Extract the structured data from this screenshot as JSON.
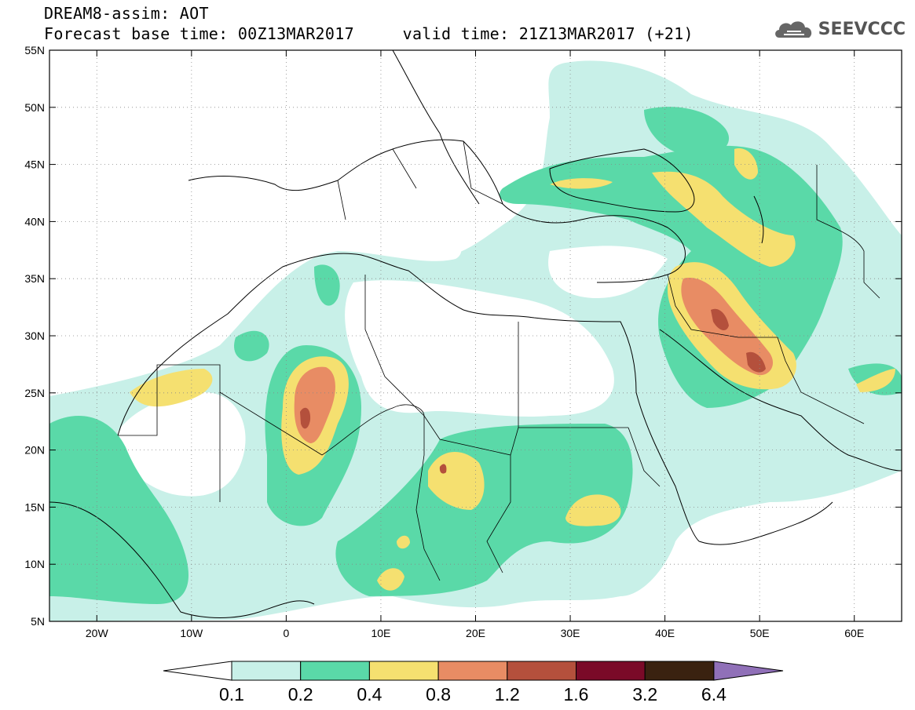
{
  "header": {
    "title_line1": "DREAM8-assim: AOT",
    "title_line2": "Forecast base time: 00Z13MAR2017     valid time: 21Z13MAR2017 (+21)",
    "brand": "SEEVCCC",
    "brand_icon": "cloud-logo-icon"
  },
  "map": {
    "projection": "lat-lon",
    "lon_range": [
      -25,
      65
    ],
    "lat_range": [
      5,
      55
    ],
    "lon_ticks": [
      {
        "value": -20,
        "label": "20W"
      },
      {
        "value": -10,
        "label": "10W"
      },
      {
        "value": 0,
        "label": "0"
      },
      {
        "value": 10,
        "label": "10E"
      },
      {
        "value": 20,
        "label": "20E"
      },
      {
        "value": 30,
        "label": "30E"
      },
      {
        "value": 40,
        "label": "40E"
      },
      {
        "value": 50,
        "label": "50E"
      },
      {
        "value": 60,
        "label": "60E"
      }
    ],
    "lat_ticks": [
      {
        "value": 5,
        "label": "5N"
      },
      {
        "value": 10,
        "label": "10N"
      },
      {
        "value": 15,
        "label": "15N"
      },
      {
        "value": 20,
        "label": "20N"
      },
      {
        "value": 25,
        "label": "25N"
      },
      {
        "value": 30,
        "label": "30N"
      },
      {
        "value": 35,
        "label": "35N"
      },
      {
        "value": 40,
        "label": "40N"
      },
      {
        "value": 45,
        "label": "45N"
      },
      {
        "value": 50,
        "label": "50N"
      },
      {
        "value": 55,
        "label": "55N"
      }
    ],
    "grid": "dotted"
  },
  "colorbar": {
    "labels": [
      "0.1",
      "0.2",
      "0.4",
      "0.8",
      "1.2",
      "1.6",
      "3.2",
      "6.4"
    ],
    "colors": [
      "#c8f0e8",
      "#5ad9a8",
      "#f5e070",
      "#e88c64",
      "#b4503c",
      "#7a0a28",
      "#3a2210"
    ],
    "over_color": "#9070b8",
    "under_color": "#ffffff"
  }
}
